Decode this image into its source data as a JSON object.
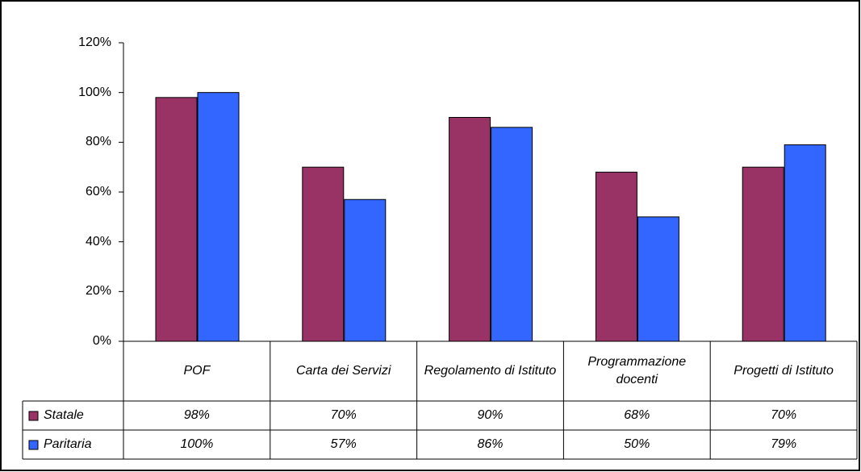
{
  "chart_data": {
    "type": "bar",
    "categories": [
      "POF",
      "Carta dei Servizi",
      "Regolamento di Istituto",
      "Programmazione docenti",
      "Progetti di Istituto"
    ],
    "series": [
      {
        "name": "Statale",
        "color": "#993366",
        "values": [
          98,
          70,
          90,
          68,
          70
        ],
        "value_labels": [
          "98%",
          "70%",
          "90%",
          "68%",
          "70%"
        ]
      },
      {
        "name": "Paritaria",
        "color": "#3366ff",
        "values": [
          100,
          57,
          86,
          50,
          79
        ],
        "value_labels": [
          "100%",
          "57%",
          "86%",
          "50%",
          "79%"
        ]
      }
    ],
    "ylim": [
      0,
      120
    ],
    "yticks": [
      {
        "value": 0,
        "label": "0%"
      },
      {
        "value": 20,
        "label": "20%"
      },
      {
        "value": 40,
        "label": "40%"
      },
      {
        "value": 60,
        "label": "60%"
      },
      {
        "value": 80,
        "label": "80%"
      },
      {
        "value": 100,
        "label": "100%"
      },
      {
        "value": 120,
        "label": "120%"
      }
    ],
    "grid": false,
    "data_table": true
  }
}
